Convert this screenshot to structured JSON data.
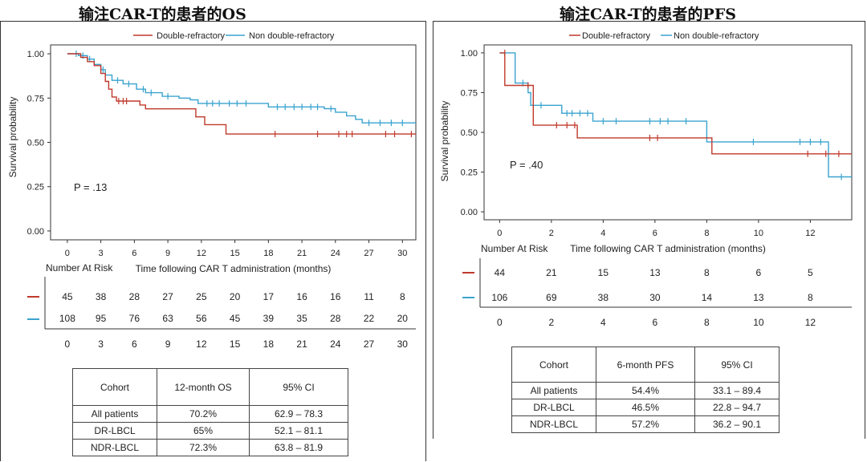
{
  "colors": {
    "dr": "#c0392b",
    "ndr": "#3aa3cf"
  },
  "left": {
    "title": "输注CAR-T的患者的OS",
    "legend": [
      "Double-refractory",
      "Non double-refractory"
    ],
    "pvalue": "P = .13",
    "ylabel": "Survival probability",
    "risk_title": "Number At Risk",
    "table": {
      "headers": [
        "Cohort",
        "12-month OS",
        "95% CI"
      ],
      "rows": [
        [
          "All patients",
          "70.2%",
          "62.9 – 78.3"
        ],
        [
          "DR-LBCL",
          "65%",
          "52.1 – 81.1"
        ],
        [
          "NDR-LBCL",
          "72.3%",
          "63.8 – 81.9"
        ]
      ]
    }
  },
  "right": {
    "title": "输注CAR-T的患者的PFS",
    "legend": [
      "Double-refractory",
      "Non double-refractory"
    ],
    "pvalue": "P = .40",
    "ylabel": "Survival probability",
    "risk_title": "Number At Risk",
    "table": {
      "headers": [
        "Cohort",
        "6-month PFS",
        "95% CI"
      ],
      "rows": [
        [
          "All patients",
          "54.4%",
          "33.1 – 89.4"
        ],
        [
          "DR-LBCL",
          "46.5%",
          "22.8 – 94.7"
        ],
        [
          "NDR-LBCL",
          "57.2%",
          "36.2 – 90.1"
        ]
      ]
    }
  },
  "chart_data": [
    {
      "type": "line",
      "title": "输注CAR-T的患者的OS",
      "xlabel": "Time following CAR T administration (months)",
      "ylabel": "Survival probability",
      "xlim": [
        -1.5,
        31.2
      ],
      "ylim": [
        -0.05,
        1.05
      ],
      "xticks": [
        0,
        3,
        6,
        9,
        12,
        15,
        18,
        21,
        24,
        27,
        30
      ],
      "yticks": [
        0,
        0.25,
        0.5,
        0.75,
        1.0
      ],
      "ytick_labels": [
        "0.00",
        "0.25",
        "0.50",
        "0.75",
        "1.00"
      ],
      "series": [
        {
          "name": "Double-refractory",
          "steps": [
            [
              0,
              1.0
            ],
            [
              1.2,
              0.98
            ],
            [
              1.8,
              0.956
            ],
            [
              2.4,
              0.933
            ],
            [
              3.0,
              0.889
            ],
            [
              3.4,
              0.844
            ],
            [
              3.7,
              0.8
            ],
            [
              4.0,
              0.756
            ],
            [
              4.4,
              0.733
            ],
            [
              6.5,
              0.711
            ],
            [
              7.0,
              0.689
            ],
            [
              11.5,
              0.644
            ],
            [
              12.3,
              0.6
            ],
            [
              14.2,
              0.547
            ],
            [
              31.2,
              0.547
            ]
          ],
          "censors": [
            [
              4.6,
              0.733
            ],
            [
              5.0,
              0.733
            ],
            [
              5.3,
              0.733
            ],
            [
              18.6,
              0.547
            ],
            [
              22.4,
              0.547
            ],
            [
              24.3,
              0.547
            ],
            [
              25.0,
              0.547
            ],
            [
              25.5,
              0.547
            ],
            [
              28.5,
              0.547
            ],
            [
              29.3,
              0.547
            ],
            [
              30.8,
              0.547
            ]
          ]
        },
        {
          "name": "Non double-refractory",
          "steps": [
            [
              0,
              1.0
            ],
            [
              1.0,
              0.99
            ],
            [
              1.8,
              0.97
            ],
            [
              2.4,
              0.94
            ],
            [
              3.0,
              0.91
            ],
            [
              3.4,
              0.88
            ],
            [
              4.0,
              0.85
            ],
            [
              5.0,
              0.83
            ],
            [
              6.2,
              0.8
            ],
            [
              7.0,
              0.78
            ],
            [
              8.5,
              0.76
            ],
            [
              10.0,
              0.75
            ],
            [
              11.0,
              0.74
            ],
            [
              11.7,
              0.72
            ],
            [
              18.0,
              0.7
            ],
            [
              23.0,
              0.69
            ],
            [
              24.0,
              0.67
            ],
            [
              25.0,
              0.65
            ],
            [
              25.8,
              0.63
            ],
            [
              26.4,
              0.61
            ],
            [
              31.2,
              0.61
            ]
          ],
          "censors": [
            [
              0.8,
              1.0
            ],
            [
              1.4,
              0.99
            ],
            [
              2.0,
              0.97
            ],
            [
              3.2,
              0.91
            ],
            [
              4.5,
              0.85
            ],
            [
              5.5,
              0.83
            ],
            [
              6.8,
              0.8
            ],
            [
              7.5,
              0.78
            ],
            [
              9.0,
              0.76
            ],
            [
              12.5,
              0.72
            ],
            [
              13.0,
              0.72
            ],
            [
              13.6,
              0.72
            ],
            [
              14.5,
              0.72
            ],
            [
              15.2,
              0.72
            ],
            [
              16.0,
              0.72
            ],
            [
              18.8,
              0.7
            ],
            [
              19.5,
              0.7
            ],
            [
              20.3,
              0.7
            ],
            [
              21.0,
              0.7
            ],
            [
              21.8,
              0.7
            ],
            [
              22.4,
              0.7
            ],
            [
              23.6,
              0.69
            ],
            [
              27.0,
              0.61
            ],
            [
              28.0,
              0.61
            ],
            [
              29.0,
              0.61
            ],
            [
              30.0,
              0.61
            ]
          ]
        }
      ],
      "risk_table": {
        "times": [
          0,
          3,
          6,
          9,
          12,
          15,
          18,
          21,
          24,
          27,
          30
        ],
        "Double-refractory": [
          45,
          38,
          28,
          27,
          25,
          20,
          17,
          16,
          16,
          11,
          8
        ],
        "Non double-refractory": [
          108,
          95,
          76,
          63,
          56,
          45,
          39,
          35,
          28,
          22,
          20
        ]
      }
    },
    {
      "type": "line",
      "title": "输注CAR-T的患者的PFS",
      "xlabel": "Time following CAR T administration (months)",
      "ylabel": "Survival probability",
      "xlim": [
        -0.6,
        13.6
      ],
      "ylim": [
        -0.05,
        1.05
      ],
      "xticks": [
        0,
        2,
        4,
        6,
        8,
        10,
        12
      ],
      "yticks": [
        0,
        0.25,
        0.5,
        0.75,
        1.0
      ],
      "ytick_labels": [
        "0.00",
        "0.25",
        "0.50",
        "0.75",
        "1.00"
      ],
      "series": [
        {
          "name": "Double-refractory",
          "steps": [
            [
              0,
              1.0
            ],
            [
              0.2,
              0.795
            ],
            [
              1.3,
              0.545
            ],
            [
              3.0,
              0.465
            ],
            [
              8.2,
              0.365
            ],
            [
              13.6,
              0.365
            ]
          ],
          "censors": [
            [
              0.2,
              1.0
            ],
            [
              1.1,
              0.795
            ],
            [
              2.2,
              0.545
            ],
            [
              2.6,
              0.545
            ],
            [
              2.9,
              0.545
            ],
            [
              5.8,
              0.465
            ],
            [
              6.1,
              0.465
            ],
            [
              11.9,
              0.365
            ],
            [
              12.6,
              0.365
            ],
            [
              13.1,
              0.365
            ]
          ]
        },
        {
          "name": "Non double-refractory",
          "steps": [
            [
              0,
              1.0
            ],
            [
              0.6,
              0.81
            ],
            [
              1.1,
              0.75
            ],
            [
              1.2,
              0.67
            ],
            [
              2.4,
              0.62
            ],
            [
              3.6,
              0.57
            ],
            [
              8.0,
              0.44
            ],
            [
              12.7,
              0.22
            ],
            [
              13.6,
              0.22
            ]
          ],
          "censors": [
            [
              0.9,
              0.81
            ],
            [
              1.6,
              0.67
            ],
            [
              2.6,
              0.62
            ],
            [
              2.8,
              0.62
            ],
            [
              3.1,
              0.62
            ],
            [
              3.4,
              0.62
            ],
            [
              4.0,
              0.57
            ],
            [
              4.5,
              0.57
            ],
            [
              5.8,
              0.57
            ],
            [
              6.2,
              0.57
            ],
            [
              6.5,
              0.57
            ],
            [
              7.2,
              0.57
            ],
            [
              9.8,
              0.44
            ],
            [
              11.6,
              0.44
            ],
            [
              12.0,
              0.44
            ],
            [
              12.4,
              0.44
            ],
            [
              13.2,
              0.22
            ]
          ]
        }
      ],
      "risk_table": {
        "times": [
          0,
          2,
          4,
          6,
          8,
          10,
          12
        ],
        "Double-refractory": [
          44,
          21,
          15,
          13,
          8,
          6,
          5
        ],
        "Non double-refractory": [
          106,
          69,
          38,
          30,
          14,
          13,
          8
        ]
      }
    }
  ]
}
